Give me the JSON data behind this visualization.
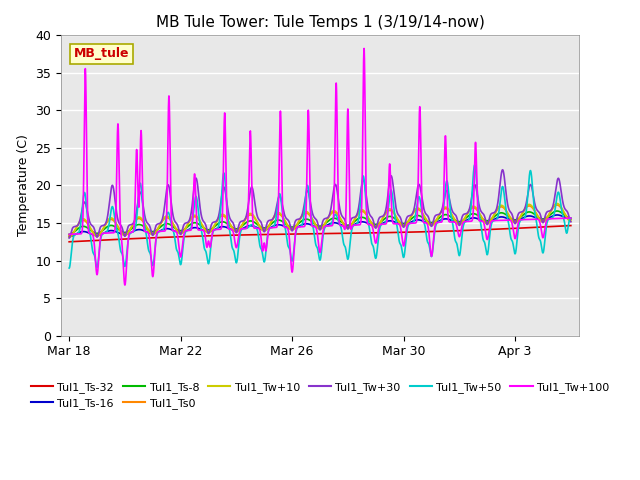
{
  "title": "MB Tule Tower: Tule Temps 1 (3/19/14-now)",
  "ylabel": "Temperature (C)",
  "bg_color": "#e8e8e8",
  "fig_color": "#ffffff",
  "ylim": [
    0,
    40
  ],
  "yticks": [
    0,
    5,
    10,
    15,
    20,
    25,
    30,
    35,
    40
  ],
  "n_days": 18,
  "xtick_positions": [
    0,
    4,
    8,
    12,
    16
  ],
  "xtick_labels": [
    "Mar 18",
    "Mar 22",
    "Mar 26",
    "Mar 30",
    "Apr 3"
  ],
  "series_order": [
    "Tul1_Ts-32",
    "Tul1_Ts-16",
    "Tul1_Ts-8",
    "Tul1_Ts0",
    "Tul1_Tw+10",
    "Tul1_Tw+30",
    "Tul1_Tw+50",
    "Tul1_Tw+100"
  ],
  "series": {
    "Tul1_Ts-32": {
      "color": "#dd0000",
      "lw": 1.2
    },
    "Tul1_Ts-16": {
      "color": "#0000cc",
      "lw": 1.2
    },
    "Tul1_Ts-8": {
      "color": "#00bb00",
      "lw": 1.2
    },
    "Tul1_Ts0": {
      "color": "#ff8800",
      "lw": 1.2
    },
    "Tul1_Tw+10": {
      "color": "#cccc00",
      "lw": 1.2
    },
    "Tul1_Tw+30": {
      "color": "#8833cc",
      "lw": 1.2
    },
    "Tul1_Tw+50": {
      "color": "#00cccc",
      "lw": 1.2
    },
    "Tul1_Tw+100": {
      "color": "#ff00ff",
      "lw": 1.2
    }
  },
  "legend_ncol_row1": 6,
  "watermark": "MB_tule",
  "watermark_color": "#cc0000",
  "watermark_bg": "#ffffcc",
  "watermark_border": "#aaaa00",
  "peak_heights_tw100": [
    35.5,
    28.0,
    24.5,
    27.0,
    31.5,
    21.0,
    18.5,
    29.0,
    26.5,
    20.0,
    29.0,
    29.0,
    32.5,
    34.5,
    37.0,
    21.5,
    29.0,
    25.0,
    24.0
  ],
  "peak_days_tw100": [
    0.58,
    1.75,
    2.42,
    2.58,
    3.58,
    4.5,
    5.0,
    5.58,
    6.5,
    7.0,
    7.58,
    8.58,
    9.58,
    10.0,
    10.58,
    11.5,
    12.58,
    13.5,
    14.58
  ],
  "trough_days_tw100": [
    1.0,
    2.0,
    3.0,
    4.0,
    5.0,
    6.0,
    7.0,
    8.0,
    9.0,
    10.0,
    11.0,
    12.0,
    13.0,
    14.0,
    15.0,
    16.0,
    17.0
  ],
  "trough_vals_tw100": [
    9.0,
    7.5,
    8.5,
    11.0,
    8.0,
    12.0,
    6.0,
    8.5,
    11.0,
    9.0,
    12.0,
    11.5,
    10.0,
    12.5,
    12.0,
    12.0,
    12.0
  ]
}
